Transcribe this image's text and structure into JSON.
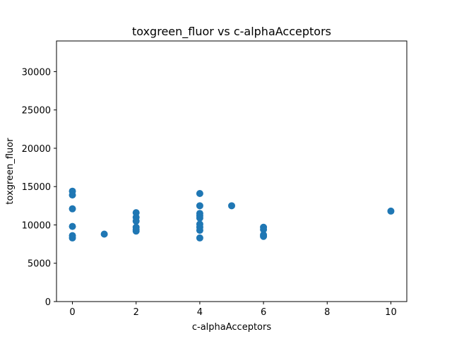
{
  "chart_data": {
    "type": "scatter",
    "title": "toxgreen_fluor vs c-alphaAcceptors",
    "xlabel": "c-alphaAcceptors",
    "ylabel": "toxgreen_fluor",
    "xlim": [
      -0.5,
      10.5
    ],
    "ylim": [
      0,
      34000
    ],
    "x_ticks": [
      0,
      2,
      4,
      6,
      8,
      10
    ],
    "y_ticks": [
      0,
      5000,
      10000,
      15000,
      20000,
      25000,
      30000
    ],
    "grid": false,
    "marker_color": "#1f77b4",
    "points": [
      {
        "x": 0,
        "y": 14400
      },
      {
        "x": 0,
        "y": 13900
      },
      {
        "x": 0,
        "y": 12100
      },
      {
        "x": 0,
        "y": 9800
      },
      {
        "x": 0,
        "y": 8600
      },
      {
        "x": 0,
        "y": 8300
      },
      {
        "x": 1,
        "y": 8800
      },
      {
        "x": 2,
        "y": 11600
      },
      {
        "x": 2,
        "y": 11000
      },
      {
        "x": 2,
        "y": 10500
      },
      {
        "x": 2,
        "y": 9700
      },
      {
        "x": 2,
        "y": 9400
      },
      {
        "x": 2,
        "y": 9200
      },
      {
        "x": 4,
        "y": 14100
      },
      {
        "x": 4,
        "y": 12500
      },
      {
        "x": 4,
        "y": 11500
      },
      {
        "x": 4,
        "y": 11200
      },
      {
        "x": 4,
        "y": 10900
      },
      {
        "x": 4,
        "y": 10100
      },
      {
        "x": 4,
        "y": 9700
      },
      {
        "x": 4,
        "y": 9300
      },
      {
        "x": 4,
        "y": 8300
      },
      {
        "x": 5,
        "y": 12500
      },
      {
        "x": 6,
        "y": 9700
      },
      {
        "x": 6,
        "y": 9400
      },
      {
        "x": 6,
        "y": 8700
      },
      {
        "x": 6,
        "y": 8500
      },
      {
        "x": 10,
        "y": 11800
      }
    ]
  }
}
